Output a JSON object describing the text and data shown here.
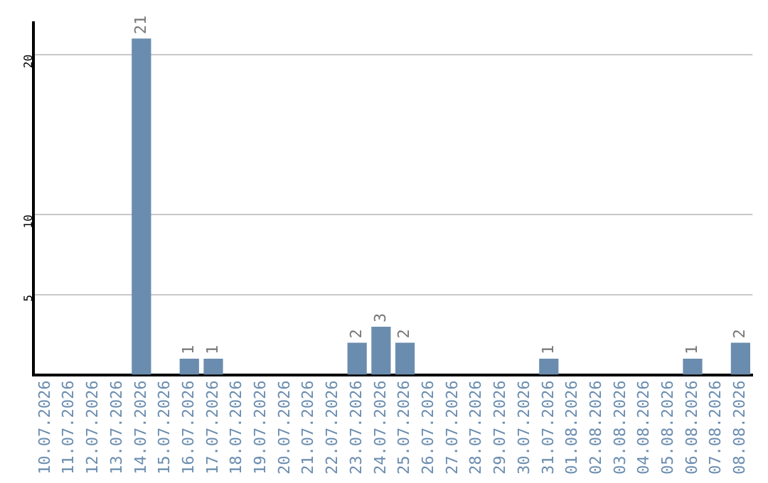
{
  "chart_data": {
    "type": "bar",
    "categories": [
      "10.07.2026",
      "11.07.2026",
      "12.07.2026",
      "13.07.2026",
      "14.07.2026",
      "15.07.2026",
      "16.07.2026",
      "17.07.2026",
      "18.07.2026",
      "19.07.2026",
      "20.07.2026",
      "21.07.2026",
      "22.07.2026",
      "23.07.2026",
      "24.07.2026",
      "25.07.2026",
      "26.07.2026",
      "27.07.2026",
      "28.07.2026",
      "29.07.2026",
      "30.07.2026",
      "31.07.2026",
      "01.08.2026",
      "02.08.2026",
      "03.08.2026",
      "04.08.2026",
      "05.08.2026",
      "06.08.2026",
      "07.08.2026",
      "08.08.2026"
    ],
    "values": [
      0,
      0,
      0,
      0,
      21,
      0,
      1,
      1,
      0,
      0,
      0,
      0,
      0,
      2,
      3,
      2,
      0,
      0,
      0,
      0,
      0,
      1,
      0,
      0,
      0,
      0,
      0,
      1,
      0,
      2
    ],
    "value_labels": [
      null,
      null,
      null,
      null,
      "21",
      null,
      "1",
      "1",
      null,
      null,
      null,
      null,
      null,
      "2",
      "3",
      "2",
      null,
      null,
      null,
      null,
      null,
      "1",
      null,
      null,
      null,
      null,
      null,
      "1",
      null,
      "2"
    ],
    "color": "#6a8caf",
    "ylim": [
      0,
      22
    ],
    "yticks": [
      5,
      10,
      20
    ],
    "grid": "y",
    "legend": false
  }
}
